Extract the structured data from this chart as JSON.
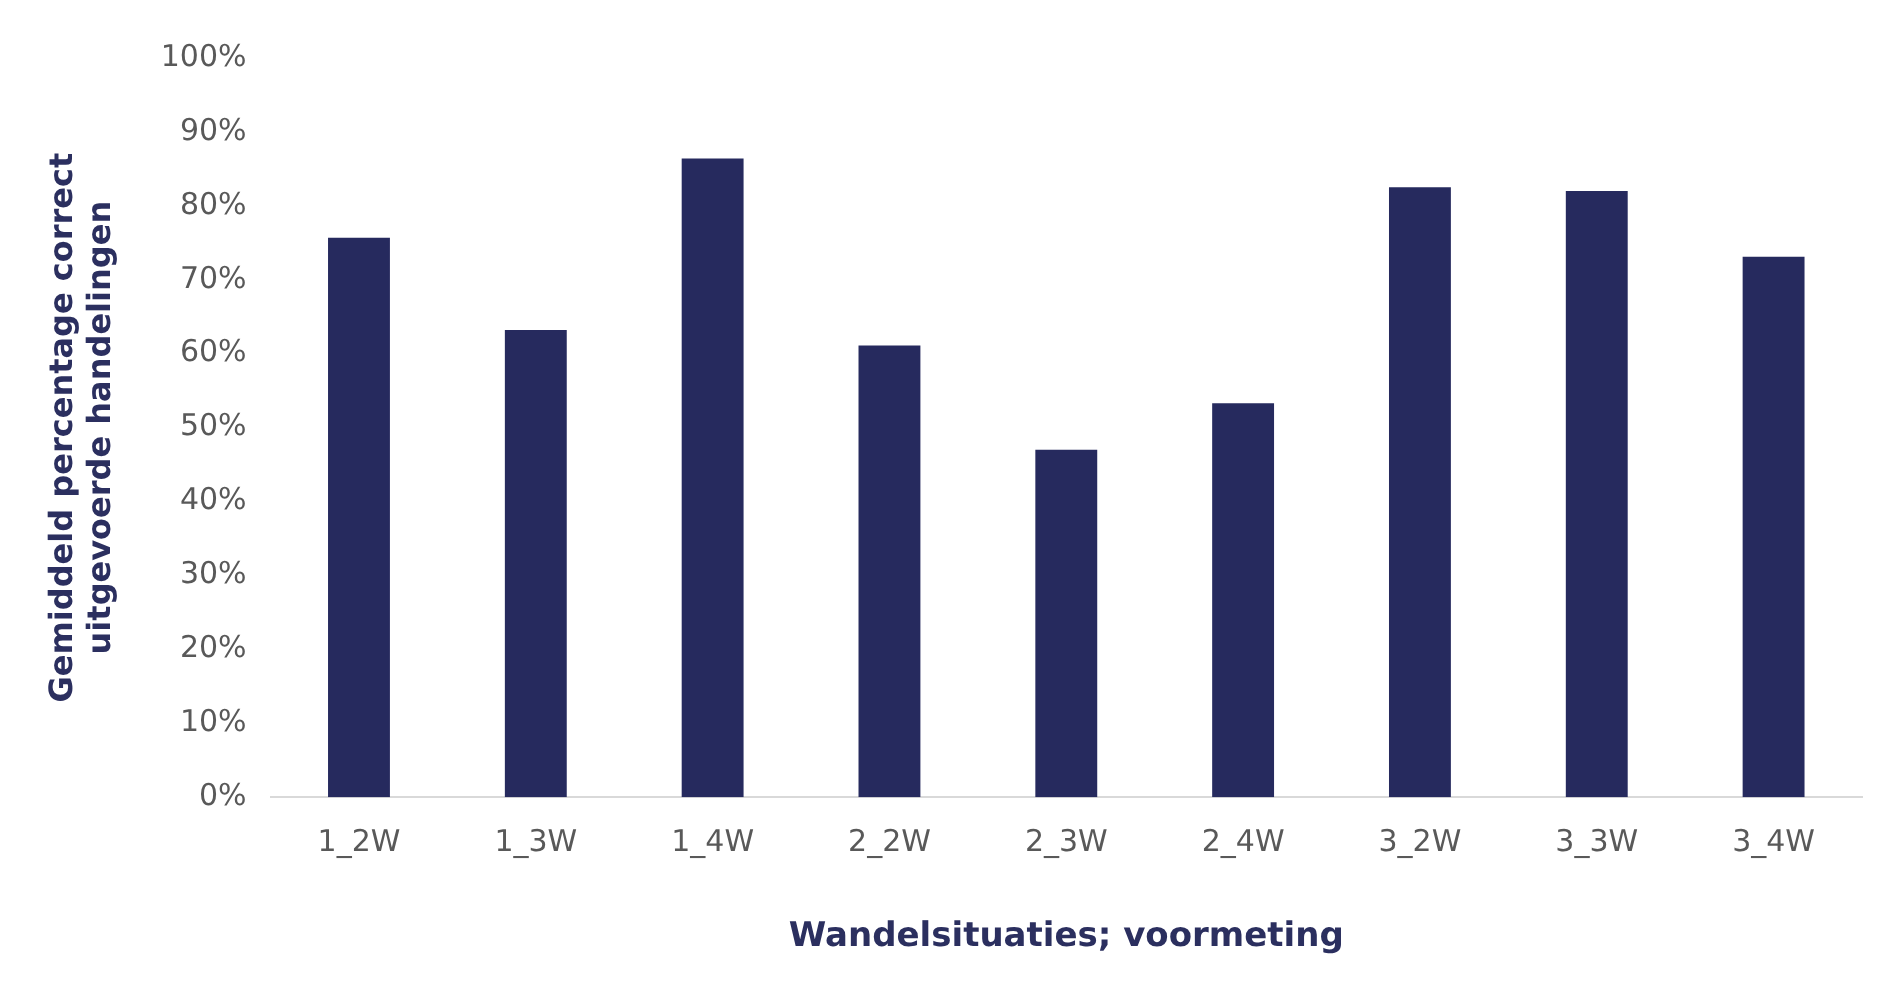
{
  "chart_data": {
    "type": "bar",
    "xlabel": "Wandelsituaties; voormeting",
    "ylabel": [
      "Gemiddeld percentage correct",
      "uitgevoerde handelingen"
    ],
    "categories": [
      "1_2W",
      "1_3W",
      "1_4W",
      "2_2W",
      "2_3W",
      "2_4W",
      "3_2W",
      "3_3W",
      "3_4W"
    ],
    "values": [
      75.7,
      63.2,
      86.4,
      61.1,
      47,
      53.3,
      82.5,
      82,
      73.1
    ],
    "color": "#262a5e",
    "ylim": [
      0,
      100
    ],
    "yticks": [
      {
        "value": 0,
        "label": "0%"
      },
      {
        "value": 10,
        "label": "10%"
      },
      {
        "value": 20,
        "label": "20%"
      },
      {
        "value": 30,
        "label": "30%"
      },
      {
        "value": 40,
        "label": "40%"
      },
      {
        "value": 50,
        "label": "50%"
      },
      {
        "value": 60,
        "label": "60%"
      },
      {
        "value": 70,
        "label": "70%"
      },
      {
        "value": 80,
        "label": "80%"
      },
      {
        "value": 90,
        "label": "90%"
      },
      {
        "value": 100,
        "label": "100%"
      }
    ],
    "grid": false,
    "legend": false
  }
}
